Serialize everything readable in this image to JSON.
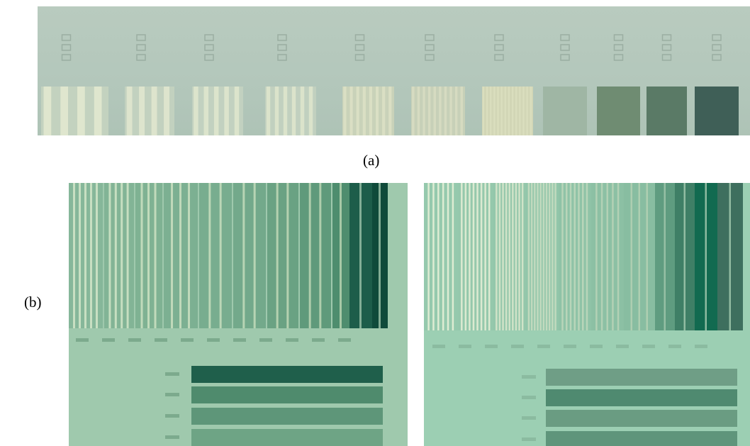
{
  "figure": {
    "label_a": "(a)",
    "label_b": "(b)"
  },
  "colors": {
    "panel_a_bg": "#b6c9bc",
    "panel_b_bg": "#9fcaae",
    "bar_light": "#e6eccf",
    "dark_block": "#1f5c4a"
  }
}
